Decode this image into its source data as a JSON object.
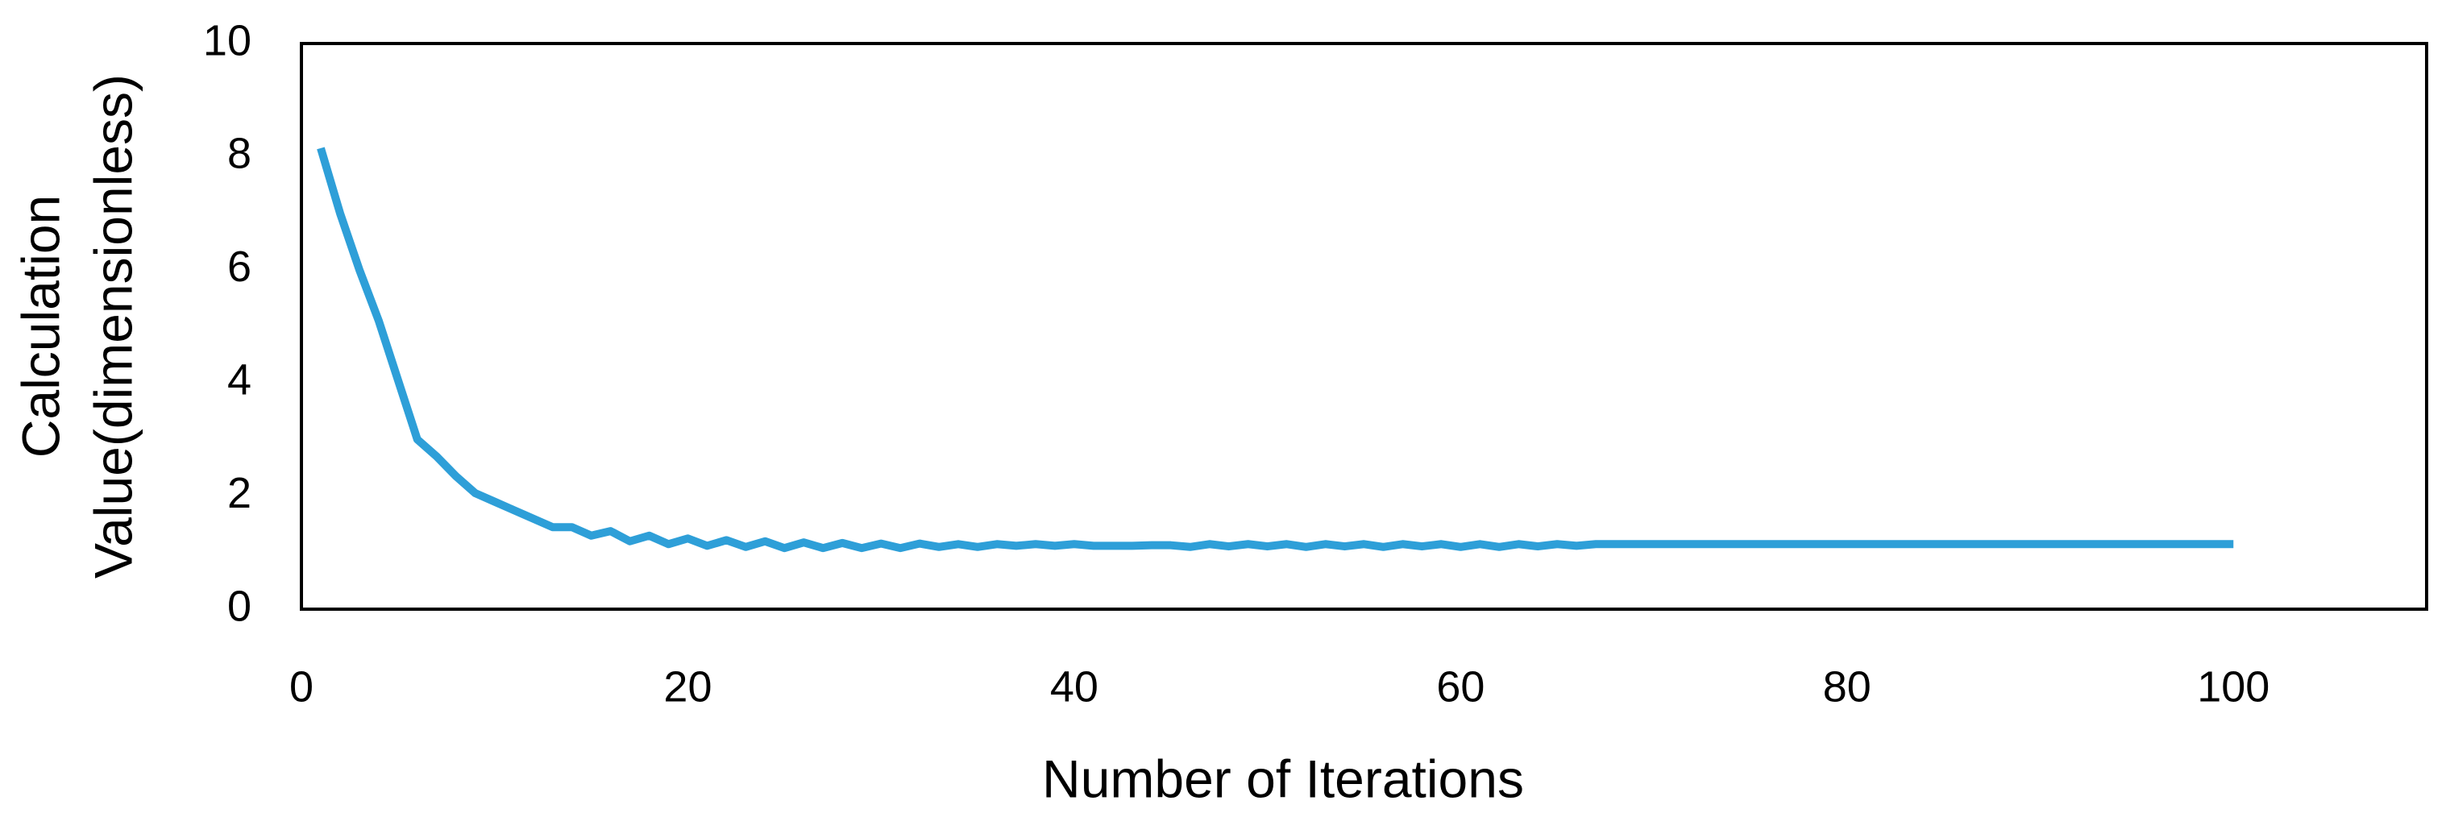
{
  "chart_data": {
    "type": "line",
    "x_label": "Number of Iterations",
    "y_label": [
      "Calculation",
      "Value(dimensionless)"
    ],
    "xlim": [
      0,
      110
    ],
    "xticks": [
      0,
      20,
      40,
      60,
      80,
      100
    ],
    "ylim": [
      0,
      10
    ],
    "yticks": [
      0,
      2,
      4,
      6,
      8,
      10
    ],
    "grid": false,
    "x": [
      1,
      2,
      3,
      4,
      5,
      6,
      7,
      8,
      9,
      10,
      11,
      12,
      13,
      14,
      15,
      16,
      17,
      18,
      19,
      20,
      21,
      22,
      23,
      24,
      25,
      26,
      27,
      28,
      29,
      30,
      31,
      32,
      33,
      34,
      35,
      36,
      37,
      38,
      39,
      40,
      41,
      42,
      43,
      44,
      45,
      46,
      47,
      48,
      49,
      50,
      51,
      52,
      53,
      54,
      55,
      56,
      57,
      58,
      59,
      60,
      61,
      62,
      63,
      64,
      65,
      66,
      67,
      68,
      69,
      70,
      71,
      72,
      73,
      74,
      75,
      76,
      77,
      78,
      79,
      80,
      81,
      82,
      83,
      84,
      85,
      86,
      87,
      88,
      89,
      90,
      91,
      92,
      93,
      94,
      95,
      96,
      97,
      98,
      99,
      100
    ],
    "series": [
      {
        "color": "#2e9fd8",
        "values": [
          8.15,
          7.0,
          6.0,
          5.1,
          4.05,
          3.0,
          2.7,
          2.35,
          2.05,
          1.9,
          1.75,
          1.6,
          1.45,
          1.45,
          1.3,
          1.38,
          1.2,
          1.3,
          1.15,
          1.25,
          1.12,
          1.22,
          1.1,
          1.2,
          1.08,
          1.18,
          1.08,
          1.17,
          1.08,
          1.16,
          1.08,
          1.16,
          1.1,
          1.15,
          1.1,
          1.15,
          1.12,
          1.15,
          1.12,
          1.15,
          1.12,
          1.12,
          1.12,
          1.13,
          1.13,
          1.1,
          1.15,
          1.11,
          1.15,
          1.11,
          1.15,
          1.1,
          1.15,
          1.11,
          1.15,
          1.1,
          1.15,
          1.11,
          1.15,
          1.1,
          1.15,
          1.1,
          1.15,
          1.11,
          1.15,
          1.12,
          1.15,
          1.15,
          1.15,
          1.15,
          1.15,
          1.15,
          1.15,
          1.15,
          1.15,
          1.15,
          1.15,
          1.15,
          1.15,
          1.15,
          1.15,
          1.15,
          1.15,
          1.15,
          1.15,
          1.15,
          1.15,
          1.15,
          1.15,
          1.15,
          1.15,
          1.15,
          1.15,
          1.15,
          1.15,
          1.15,
          1.15,
          1.15,
          1.15,
          1.15
        ]
      }
    ]
  }
}
